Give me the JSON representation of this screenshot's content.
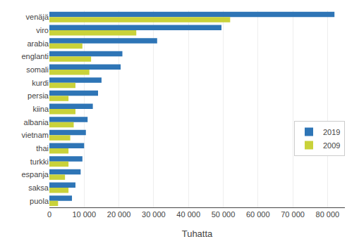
{
  "chart_data": {
    "type": "bar",
    "orientation": "horizontal",
    "categories": [
      "venäjä",
      "viro",
      "arabia",
      "englanti",
      "somali",
      "kurdi",
      "persia",
      "kiina",
      "albania",
      "vietnam",
      "thai",
      "turkki",
      "espanja",
      "saksa",
      "puola"
    ],
    "series": [
      {
        "name": "2019",
        "color": "#2E75B6",
        "values": [
          82000,
          49500,
          31000,
          21000,
          20500,
          15000,
          14000,
          12500,
          11000,
          10500,
          10000,
          9500,
          9000,
          7500,
          6500
        ]
      },
      {
        "name": "2009",
        "color": "#C9D23A",
        "values": [
          52000,
          25000,
          9500,
          12000,
          11500,
          7500,
          5500,
          7500,
          7000,
          6000,
          5500,
          5500,
          4500,
          5500,
          2500
        ]
      }
    ],
    "xlabel": "Tuhatta",
    "xlim": [
      0,
      85000
    ],
    "xticks": [
      0,
      {
        "value": 10000,
        "label": "10 000"
      },
      {
        "value": 20000,
        "label": "20 000"
      },
      {
        "value": 30000,
        "label": "30 000"
      },
      {
        "value": 40000,
        "label": "40 000"
      },
      {
        "value": 50000,
        "label": "50 000"
      },
      {
        "value": 60000,
        "label": "60 000"
      },
      {
        "value": 70000,
        "label": "70 000"
      },
      {
        "value": 80000,
        "label": "80 000"
      }
    ],
    "grid": true,
    "legend": "right"
  }
}
